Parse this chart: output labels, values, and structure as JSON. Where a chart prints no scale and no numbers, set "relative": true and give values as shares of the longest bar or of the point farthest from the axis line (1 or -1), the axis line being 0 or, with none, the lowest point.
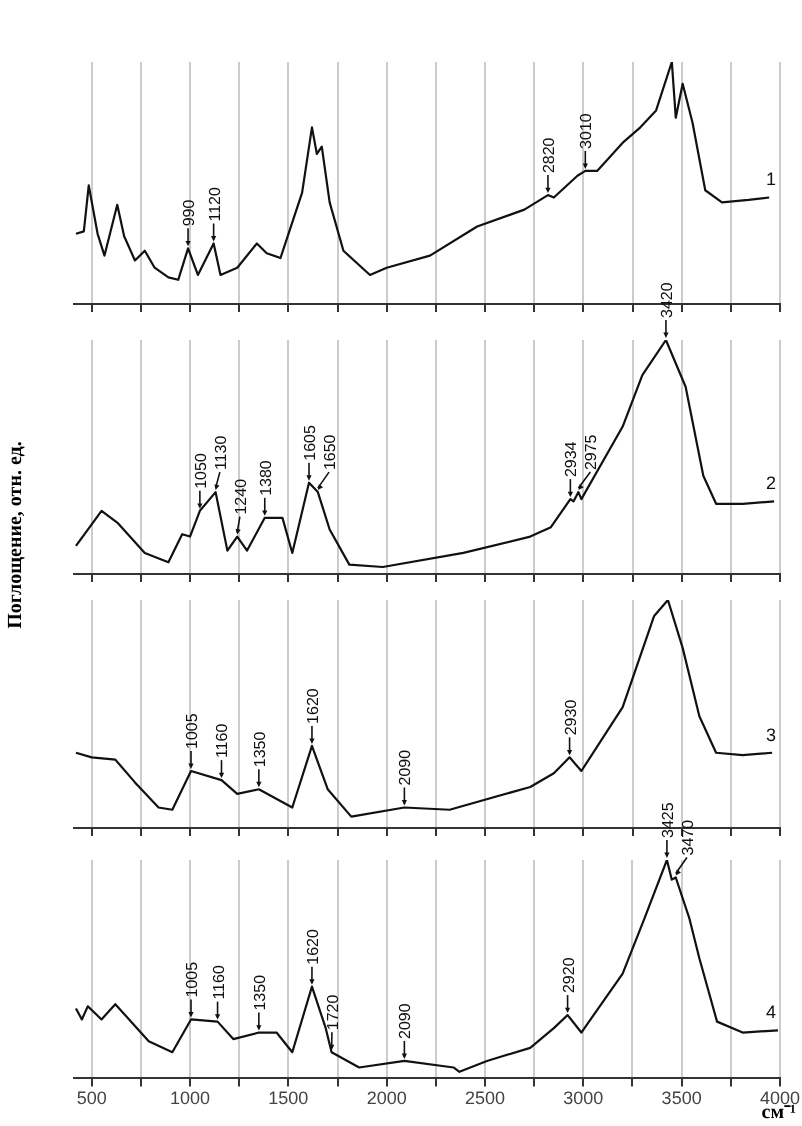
{
  "chart_data": [
    {
      "type": "line",
      "relative": true,
      "xlim": [
        410,
        4000
      ],
      "xticks": [
        500,
        {
          "value": 750,
          "label": null
        },
        1000,
        {
          "value": 1250,
          "label": null
        },
        1500,
        {
          "value": 1750,
          "label": null
        },
        2000,
        {
          "value": 2250,
          "label": null
        },
        2500,
        {
          "value": 2750,
          "label": null
        },
        3000,
        {
          "value": 3250,
          "label": null
        },
        3500,
        {
          "value": 3750,
          "label": null
        },
        4000
      ],
      "grid": "x",
      "tick_labels": false,
      "marker": "none",
      "x": [
        420,
        460,
        485,
        530,
        565,
        630,
        665,
        720,
        770,
        820,
        890,
        940,
        990,
        1040,
        1120,
        1155,
        1240,
        1340,
        1390,
        1460,
        1570,
        1620,
        1645,
        1670,
        1710,
        1780,
        1915,
        2000,
        2220,
        2460,
        2700,
        2820,
        2850,
        2970,
        3010,
        3070,
        3205,
        3290,
        3370,
        3450,
        3470,
        3505,
        3555,
        3620,
        3705,
        3840,
        3945
      ],
      "series": [
        {
          "color": "#111111",
          "values": [
            0.29,
            0.3,
            0.49,
            0.29,
            0.2,
            0.41,
            0.28,
            0.18,
            0.22,
            0.15,
            0.11,
            0.1,
            0.23,
            0.12,
            0.25,
            0.12,
            0.15,
            0.25,
            0.21,
            0.19,
            0.46,
            0.73,
            0.62,
            0.65,
            0.42,
            0.22,
            0.12,
            0.15,
            0.2,
            0.32,
            0.39,
            0.45,
            0.44,
            0.53,
            0.55,
            0.55,
            0.67,
            0.73,
            0.8,
            1.0,
            0.77,
            0.91,
            0.75,
            0.47,
            0.42,
            0.43,
            0.44
          ]
        }
      ],
      "annotations": [
        {
          "text": "990",
          "x": 990,
          "y": 0.23
        },
        {
          "text": "1120",
          "x": 1120,
          "y": 0.25
        },
        {
          "text": "2820",
          "x": 2820,
          "y": 0.45
        },
        {
          "text": "3010",
          "x": 3010,
          "y": 0.55
        },
        "1"
      ]
    },
    {
      "type": "line",
      "relative": true,
      "xlim": [
        410,
        4000
      ],
      "xticks": [
        500,
        {
          "value": 750,
          "label": null
        },
        1000,
        {
          "value": 1250,
          "label": null
        },
        1500,
        {
          "value": 1750,
          "label": null
        },
        2000,
        {
          "value": 2250,
          "label": null
        },
        2500,
        {
          "value": 2750,
          "label": null
        },
        3000,
        {
          "value": 3250,
          "label": null
        },
        3500,
        {
          "value": 3750,
          "label": null
        },
        4000
      ],
      "grid": "x",
      "tick_labels": false,
      "marker": "none",
      "ylabel": "Поглощение, отн. ед.",
      "x": [
        420,
        550,
        630,
        770,
        890,
        960,
        1000,
        1050,
        1130,
        1190,
        1240,
        1290,
        1380,
        1470,
        1520,
        1605,
        1650,
        1710,
        1810,
        1980,
        2390,
        2730,
        2835,
        2934,
        2950,
        2975,
        2990,
        3200,
        3300,
        3420,
        3520,
        3610,
        3675,
        3810,
        3970
      ],
      "series": [
        {
          "color": "#111111",
          "values": [
            0.12,
            0.27,
            0.22,
            0.09,
            0.05,
            0.17,
            0.16,
            0.27,
            0.35,
            0.1,
            0.16,
            0.1,
            0.24,
            0.24,
            0.09,
            0.39,
            0.35,
            0.19,
            0.04,
            0.03,
            0.09,
            0.16,
            0.2,
            0.32,
            0.31,
            0.35,
            0.32,
            0.63,
            0.85,
            1.0,
            0.8,
            0.42,
            0.3,
            0.3,
            0.31
          ]
        }
      ],
      "annotations": [
        {
          "text": "1050",
          "x": 1050,
          "y": 0.27
        },
        {
          "text": "1130",
          "x": 1130,
          "y": 0.35
        },
        {
          "text": "1240",
          "x": 1240,
          "y": 0.16
        },
        {
          "text": "1380",
          "x": 1380,
          "y": 0.24
        },
        {
          "text": "1605",
          "x": 1605,
          "y": 0.39
        },
        {
          "text": "1650",
          "x": 1650,
          "y": 0.35
        },
        {
          "text": "2934",
          "x": 2934,
          "y": 0.32
        },
        {
          "text": "2975",
          "x": 2975,
          "y": 0.35
        },
        {
          "text": "3420",
          "x": 3420,
          "y": 1.0
        },
        "2"
      ]
    },
    {
      "type": "line",
      "relative": true,
      "xlim": [
        410,
        4000
      ],
      "xticks": [
        500,
        {
          "value": 750,
          "label": null
        },
        1000,
        {
          "value": 1250,
          "label": null
        },
        1500,
        {
          "value": 1750,
          "label": null
        },
        2000,
        {
          "value": 2250,
          "label": null
        },
        2500,
        {
          "value": 2750,
          "label": null
        },
        3000,
        {
          "value": 3250,
          "label": null
        },
        3500,
        {
          "value": 3750,
          "label": null
        },
        4000
      ],
      "grid": "x",
      "tick_labels": false,
      "marker": "none",
      "x": [
        420,
        500,
        620,
        720,
        840,
        910,
        1005,
        1160,
        1240,
        1350,
        1520,
        1620,
        1700,
        1820,
        2090,
        2320,
        2730,
        2850,
        2930,
        2990,
        3200,
        3360,
        3430,
        3505,
        3590,
        3675,
        3810,
        3960
      ],
      "series": [
        {
          "color": "#111111",
          "values": [
            0.33,
            0.31,
            0.3,
            0.2,
            0.09,
            0.08,
            0.25,
            0.21,
            0.15,
            0.17,
            0.09,
            0.36,
            0.17,
            0.05,
            0.09,
            0.08,
            0.18,
            0.24,
            0.31,
            0.25,
            0.53,
            0.93,
            1.0,
            0.79,
            0.49,
            0.33,
            0.32,
            0.33
          ]
        }
      ],
      "annotations": [
        {
          "text": "1005",
          "x": 1005,
          "y": 0.25
        },
        {
          "text": "1160",
          "x": 1160,
          "y": 0.21
        },
        {
          "text": "1350",
          "x": 1350,
          "y": 0.17
        },
        {
          "text": "1620",
          "x": 1620,
          "y": 0.36
        },
        {
          "text": "2090",
          "x": 2090,
          "y": 0.09
        },
        {
          "text": "2930",
          "x": 2930,
          "y": 0.31
        },
        "3"
      ]
    },
    {
      "type": "line",
      "relative": true,
      "xlim": [
        410,
        4000
      ],
      "xticks": [
        500,
        {
          "value": 750,
          "label": null
        },
        1000,
        {
          "value": 1250,
          "label": null
        },
        1500,
        {
          "value": 1750,
          "label": null
        },
        2000,
        {
          "value": 2250,
          "label": null
        },
        2500,
        {
          "value": 2750,
          "label": null
        },
        3000,
        {
          "value": 3250,
          "label": null
        },
        3500,
        {
          "value": 3750,
          "label": null
        },
        4000
      ],
      "grid": "x",
      "tick_labels": "x",
      "marker": "none",
      "xlabel": "см⁻¹",
      "x": [
        420,
        450,
        480,
        550,
        620,
        720,
        790,
        910,
        1005,
        1140,
        1220,
        1350,
        1440,
        1520,
        1620,
        1690,
        1720,
        1860,
        2090,
        2340,
        2370,
        2510,
        2730,
        2850,
        2920,
        2990,
        3200,
        3310,
        3425,
        3450,
        3470,
        3540,
        3590,
        3680,
        3810,
        3990
      ],
      "series": [
        {
          "color": "#111111",
          "values": [
            0.32,
            0.27,
            0.33,
            0.27,
            0.34,
            0.24,
            0.17,
            0.12,
            0.27,
            0.26,
            0.18,
            0.21,
            0.21,
            0.12,
            0.42,
            0.23,
            0.12,
            0.05,
            0.08,
            0.05,
            0.03,
            0.08,
            0.14,
            0.23,
            0.29,
            0.21,
            0.48,
            0.73,
            1.0,
            0.91,
            0.92,
            0.73,
            0.55,
            0.26,
            0.21,
            0.22
          ]
        }
      ],
      "annotations": [
        {
          "text": "1005",
          "x": 1005,
          "y": 0.27
        },
        {
          "text": "1160",
          "x": 1140,
          "y": 0.26
        },
        {
          "text": "1350",
          "x": 1350,
          "y": 0.21
        },
        {
          "text": "1620",
          "x": 1620,
          "y": 0.42
        },
        {
          "text": "1720",
          "x": 1720,
          "y": 0.12
        },
        {
          "text": "2090",
          "x": 2090,
          "y": 0.08
        },
        {
          "text": "2920",
          "x": 2920,
          "y": 0.29
        },
        {
          "text": "3425",
          "x": 3425,
          "y": 1.0
        },
        {
          "text": "3470",
          "x": 3470,
          "y": 0.92
        },
        "4"
      ]
    }
  ]
}
